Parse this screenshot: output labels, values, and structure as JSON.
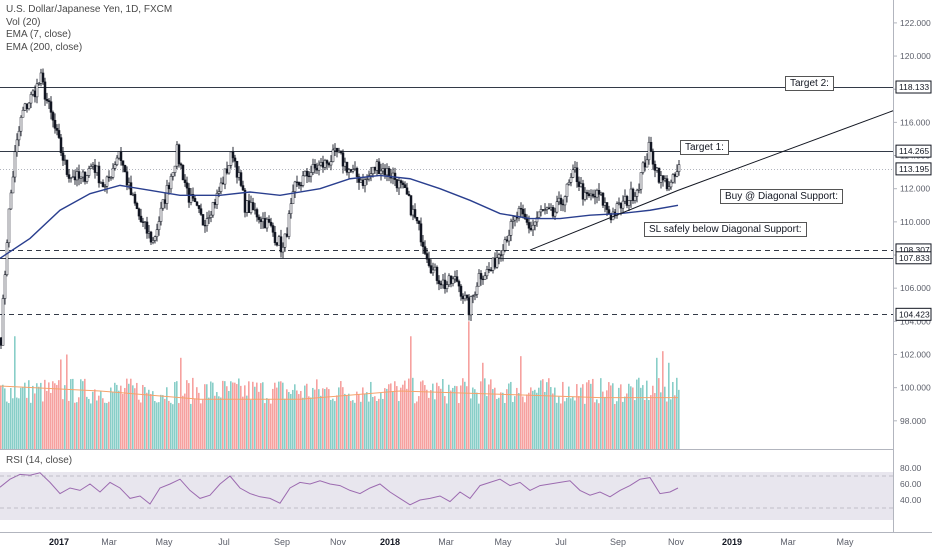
{
  "legend": {
    "symbol": "U.S. Dollar/Japanese Yen, 1D, FXCM",
    "volume": "Vol (20)",
    "ema_fast": "EMA (7, close)",
    "ema_slow": "EMA (200, close)",
    "rsi": "RSI (14, close)"
  },
  "annotations": {
    "target2": "Target 2:",
    "target1": "Target 1:",
    "buy": "Buy @ Diagonal Support:",
    "sl": "SL safely below Diagonal Support:"
  },
  "colors": {
    "up": "#26a69a",
    "down": "#ef5350",
    "ema200": "#2a3f8f",
    "rsi": "#9c6bb0",
    "volume_ma": "#f6a26b"
  },
  "chart_data": {
    "type": "candlestick",
    "symbol": "U.S. Dollar/Japanese Yen",
    "timeframe": "1D",
    "source": "FXCM",
    "x_ticks": [
      "2017",
      "Mar",
      "May",
      "Jul",
      "Sep",
      "Nov",
      "2018",
      "Mar",
      "May",
      "Jul",
      "Sep",
      "Nov",
      "2019",
      "Mar",
      "May"
    ],
    "price_axis_ticks": [
      122.0,
      120.0,
      118.0,
      116.0,
      114.0,
      112.0,
      110.0,
      108.0,
      106.0,
      104.0,
      102.0,
      100.0,
      98.0
    ],
    "ylim": [
      96.3,
      123.2
    ],
    "price_path": [
      [
        0,
        103.0
      ],
      [
        7,
        110.0
      ],
      [
        14,
        114.0
      ],
      [
        21,
        116.5
      ],
      [
        30,
        117.5
      ],
      [
        40,
        118.6
      ],
      [
        52,
        116.0
      ],
      [
        66,
        113.0
      ],
      [
        80,
        112.5
      ],
      [
        92,
        113.5
      ],
      [
        104,
        112.0
      ],
      [
        118,
        114.3
      ],
      [
        128,
        112.0
      ],
      [
        140,
        110.0
      ],
      [
        152,
        108.8
      ],
      [
        162,
        111.0
      ],
      [
        176,
        114.2
      ],
      [
        188,
        111.5
      ],
      [
        202,
        110.0
      ],
      [
        216,
        111.5
      ],
      [
        232,
        114.2
      ],
      [
        244,
        111.0
      ],
      [
        256,
        110.5
      ],
      [
        268,
        109.8
      ],
      [
        282,
        108.3
      ],
      [
        294,
        112.0
      ],
      [
        308,
        113.0
      ],
      [
        324,
        113.5
      ],
      [
        336,
        114.1
      ],
      [
        350,
        113.0
      ],
      [
        364,
        112.4
      ],
      [
        376,
        113.4
      ],
      [
        392,
        112.8
      ],
      [
        406,
        111.5
      ],
      [
        420,
        109.2
      ],
      [
        432,
        107.0
      ],
      [
        444,
        106.2
      ],
      [
        456,
        106.5
      ],
      [
        468,
        104.7
      ],
      [
        478,
        106.8
      ],
      [
        490,
        107.1
      ],
      [
        504,
        109.0
      ],
      [
        518,
        110.5
      ],
      [
        530,
        109.6
      ],
      [
        540,
        110.6
      ],
      [
        552,
        110.4
      ],
      [
        562,
        111.4
      ],
      [
        574,
        113.0
      ],
      [
        584,
        111.4
      ],
      [
        598,
        111.6
      ],
      [
        610,
        110.4
      ],
      [
        624,
        111.2
      ],
      [
        636,
        112.0
      ],
      [
        648,
        114.4
      ],
      [
        660,
        112.5
      ],
      [
        670,
        112.2
      ],
      [
        678,
        113.2
      ]
    ],
    "ema200_path": [
      [
        0,
        107.8
      ],
      [
        30,
        109.0
      ],
      [
        60,
        110.7
      ],
      [
        90,
        111.7
      ],
      [
        120,
        112.2
      ],
      [
        150,
        111.9
      ],
      [
        180,
        111.6
      ],
      [
        220,
        111.6
      ],
      [
        250,
        111.8
      ],
      [
        280,
        111.6
      ],
      [
        320,
        112.0
      ],
      [
        350,
        112.6
      ],
      [
        380,
        112.8
      ],
      [
        410,
        112.6
      ],
      [
        440,
        112.0
      ],
      [
        470,
        111.3
      ],
      [
        500,
        110.5
      ],
      [
        530,
        110.2
      ],
      [
        560,
        110.2
      ],
      [
        590,
        110.4
      ],
      [
        620,
        110.5
      ],
      [
        650,
        110.7
      ],
      [
        678,
        111.0
      ]
    ],
    "horizontal_levels": [
      {
        "price": 118.133,
        "label": "118.133",
        "style": "solid"
      },
      {
        "price": 114.265,
        "label": "114.265",
        "style": "solid"
      },
      {
        "price": 113.195,
        "label": "113.195",
        "style": "dotted"
      },
      {
        "price": 108.307,
        "label": "108.307",
        "style": "dashed"
      },
      {
        "price": 107.833,
        "label": "107.833",
        "style": "solid"
      },
      {
        "price": 104.423,
        "label": "104.423",
        "style": "dashed"
      }
    ],
    "trendline": {
      "x": [
        530,
        678
      ],
      "price": [
        108.3,
        111.9
      ]
    },
    "trendline_extension": {
      "x": [
        678,
        893
      ],
      "price": [
        111.9,
        116.7
      ]
    },
    "rsi": {
      "axis_ticks": [
        80.0,
        60.0,
        40.0
      ],
      "band": [
        70,
        30
      ],
      "path": [
        [
          0,
          56
        ],
        [
          10,
          66
        ],
        [
          20,
          72
        ],
        [
          30,
          71
        ],
        [
          40,
          74
        ],
        [
          50,
          62
        ],
        [
          60,
          48
        ],
        [
          70,
          55
        ],
        [
          80,
          52
        ],
        [
          90,
          60
        ],
        [
          100,
          50
        ],
        [
          110,
          62
        ],
        [
          120,
          55
        ],
        [
          130,
          42
        ],
        [
          140,
          45
        ],
        [
          150,
          35
        ],
        [
          160,
          55
        ],
        [
          170,
          60
        ],
        [
          180,
          66
        ],
        [
          190,
          52
        ],
        [
          200,
          42
        ],
        [
          210,
          46
        ],
        [
          220,
          60
        ],
        [
          230,
          70
        ],
        [
          240,
          55
        ],
        [
          250,
          48
        ],
        [
          260,
          44
        ],
        [
          270,
          42
        ],
        [
          280,
          36
        ],
        [
          290,
          55
        ],
        [
          300,
          62
        ],
        [
          310,
          60
        ],
        [
          320,
          64
        ],
        [
          330,
          60
        ],
        [
          340,
          58
        ],
        [
          350,
          52
        ],
        [
          360,
          48
        ],
        [
          370,
          55
        ],
        [
          380,
          60
        ],
        [
          390,
          50
        ],
        [
          400,
          42
        ],
        [
          410,
          34
        ],
        [
          420,
          40
        ],
        [
          430,
          42
        ],
        [
          440,
          45
        ],
        [
          450,
          38
        ],
        [
          460,
          50
        ],
        [
          470,
          42
        ],
        [
          480,
          58
        ],
        [
          490,
          62
        ],
        [
          500,
          66
        ],
        [
          510,
          58
        ],
        [
          520,
          62
        ],
        [
          530,
          52
        ],
        [
          540,
          58
        ],
        [
          550,
          60
        ],
        [
          560,
          62
        ],
        [
          570,
          64
        ],
        [
          580,
          52
        ],
        [
          590,
          46
        ],
        [
          600,
          50
        ],
        [
          610,
          44
        ],
        [
          620,
          52
        ],
        [
          630,
          58
        ],
        [
          640,
          66
        ],
        [
          650,
          68
        ],
        [
          660,
          48
        ],
        [
          670,
          50
        ],
        [
          678,
          55
        ]
      ]
    },
    "volume": {
      "avg_path": [
        [
          0,
          100.1
        ],
        [
          100,
          99.8
        ],
        [
          200,
          99.3
        ],
        [
          300,
          99.3
        ],
        [
          400,
          99.8
        ],
        [
          500,
          99.6
        ],
        [
          600,
          99.4
        ],
        [
          678,
          99.4
        ]
      ],
      "spikes": [
        {
          "x": 14,
          "price": 103.1
        },
        {
          "x": 60,
          "price": 101.7
        },
        {
          "x": 66,
          "price": 102.0
        },
        {
          "x": 180,
          "price": 101.8
        },
        {
          "x": 245,
          "price": 101.6
        },
        {
          "x": 410,
          "price": 103.1
        },
        {
          "x": 425,
          "price": 103.0
        },
        {
          "x": 468,
          "price": 104.0
        },
        {
          "x": 482,
          "price": 101.5
        },
        {
          "x": 520,
          "price": 101.9
        },
        {
          "x": 656,
          "price": 101.8
        },
        {
          "x": 662,
          "price": 102.2
        },
        {
          "x": 668,
          "price": 101.5
        }
      ]
    }
  }
}
